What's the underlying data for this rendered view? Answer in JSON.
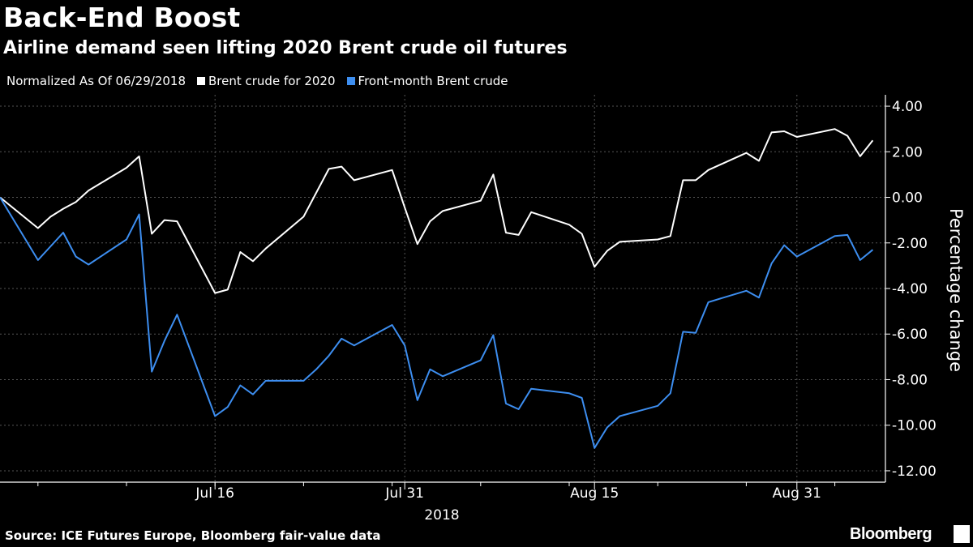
{
  "title": "Back-End Boost",
  "subtitle": "Airline demand seen lifting 2020 Brent crude oil futures",
  "legend": {
    "note": "Normalized As Of 06/29/2018",
    "items": [
      {
        "label": "Brent crude for 2020",
        "color": "#ffffff"
      },
      {
        "label": "Front-month Brent crude",
        "color": "#3d8ef0"
      }
    ]
  },
  "source": "Source: ICE Futures Europe, Bloomberg fair-value data",
  "brand": "Bloomberg",
  "chart_data": {
    "type": "line",
    "ylabel": "Percentage change",
    "xlabel": "2018",
    "y_axis_position": "right",
    "ylim": [
      -12.5,
      4.5
    ],
    "yticks": [
      4,
      2,
      0,
      -2,
      -4,
      -6,
      -8,
      -10,
      -12
    ],
    "ytick_labels": [
      "4.00",
      "2.00",
      "0.00",
      "-2.00",
      "-4.00",
      "-6.00",
      "-8.00",
      "-10.00",
      "-12.00"
    ],
    "x_tick_labels": [
      "Jul 16",
      "Jul 31",
      "Aug 15",
      "Aug 31"
    ],
    "x_tick_dates": [
      "2018-07-16",
      "2018-07-31",
      "2018-08-15",
      "2018-08-31"
    ],
    "x_domain": [
      "2018-06-29",
      "2018-09-07"
    ],
    "grid": true,
    "x": [
      "2018-06-29",
      "2018-07-02",
      "2018-07-03",
      "2018-07-04",
      "2018-07-05",
      "2018-07-06",
      "2018-07-09",
      "2018-07-10",
      "2018-07-11",
      "2018-07-12",
      "2018-07-13",
      "2018-07-16",
      "2018-07-17",
      "2018-07-18",
      "2018-07-19",
      "2018-07-20",
      "2018-07-23",
      "2018-07-24",
      "2018-07-25",
      "2018-07-26",
      "2018-07-27",
      "2018-07-30",
      "2018-07-31",
      "2018-08-01",
      "2018-08-02",
      "2018-08-03",
      "2018-08-06",
      "2018-08-07",
      "2018-08-08",
      "2018-08-09",
      "2018-08-10",
      "2018-08-13",
      "2018-08-14",
      "2018-08-15",
      "2018-08-16",
      "2018-08-17",
      "2018-08-20",
      "2018-08-21",
      "2018-08-22",
      "2018-08-23",
      "2018-08-24",
      "2018-08-27",
      "2018-08-28",
      "2018-08-29",
      "2018-08-30",
      "2018-08-31",
      "2018-09-03",
      "2018-09-04",
      "2018-09-05",
      "2018-09-06"
    ],
    "series": [
      {
        "name": "Brent crude for 2020",
        "color": "#ffffff",
        "values": [
          0.0,
          -1.35,
          -0.85,
          -0.5,
          -0.2,
          0.3,
          1.3,
          1.8,
          -1.6,
          -1.0,
          -1.05,
          -4.2,
          -4.05,
          -2.4,
          -2.8,
          -2.25,
          -0.85,
          0.2,
          1.25,
          1.35,
          0.75,
          1.2,
          -0.45,
          -2.05,
          -1.05,
          -0.6,
          -0.15,
          1.0,
          -1.55,
          -1.65,
          -0.65,
          -1.2,
          -1.6,
          -3.05,
          -2.35,
          -1.95,
          -1.85,
          -1.7,
          0.75,
          0.75,
          1.2,
          1.95,
          1.6,
          2.85,
          2.9,
          2.65,
          3.0,
          2.7,
          1.8,
          2.5
        ]
      },
      {
        "name": "Front-month Brent crude",
        "color": "#3d8ef0",
        "values": [
          0.0,
          -2.75,
          -2.15,
          -1.55,
          -2.6,
          -2.95,
          -1.85,
          -0.75,
          -7.65,
          -6.3,
          -5.15,
          -9.6,
          -9.2,
          -8.25,
          -8.65,
          -8.05,
          -8.05,
          -7.55,
          -6.95,
          -6.2,
          -6.5,
          -5.6,
          -6.5,
          -8.9,
          -7.55,
          -7.85,
          -7.15,
          -6.05,
          -9.05,
          -9.3,
          -8.4,
          -8.6,
          -8.8,
          -11.0,
          -10.1,
          -9.6,
          -9.15,
          -8.6,
          -5.9,
          -5.95,
          -4.6,
          -4.1,
          -4.4,
          -2.9,
          -2.1,
          -2.6,
          -1.7,
          -1.65,
          -2.75,
          -2.3
        ]
      }
    ]
  }
}
